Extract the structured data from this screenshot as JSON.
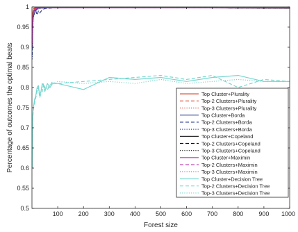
{
  "chart_data": {
    "type": "line",
    "title": "",
    "xlabel": "Forest size",
    "ylabel": "Percentage of outcomes the optimal beats",
    "xlim": [
      0,
      1000
    ],
    "ylim": [
      0.5,
      1
    ],
    "xticks": [
      "100",
      "200",
      "300",
      "400",
      "500",
      "600",
      "700",
      "800",
      "900",
      "1000"
    ],
    "yticks": [
      "0.5",
      "0.55",
      "0.6",
      "0.65",
      "0.7",
      "0.75",
      "0.8",
      "0.85",
      "0.9",
      "0.95",
      "1"
    ],
    "grid": false,
    "legend_position": "lower-right",
    "series": [
      {
        "name": "Top Cluster+Plurality",
        "color": "#d9452c",
        "dash": "solid",
        "x": [
          1,
          3,
          5,
          10,
          15,
          20,
          30,
          40,
          50,
          70,
          100,
          300,
          500,
          700,
          1000
        ],
        "y": [
          0.95,
          0.985,
          0.995,
          0.998,
          0.999,
          0.999,
          0.999,
          0.999,
          0.999,
          0.999,
          0.999,
          0.999,
          0.999,
          0.999,
          0.999
        ]
      },
      {
        "name": "Top-2 Clusters+Plurality",
        "color": "#d9452c",
        "dash": "dashed",
        "x": [
          1,
          3,
          5,
          10,
          15,
          20,
          30,
          50,
          100,
          300,
          500,
          1000
        ],
        "y": [
          0.94,
          0.98,
          0.99,
          0.997,
          0.998,
          0.999,
          0.999,
          0.999,
          0.999,
          0.999,
          0.999,
          0.999
        ]
      },
      {
        "name": "Top-3 Clusters+Plurality",
        "color": "#d9452c",
        "dash": "dotted",
        "x": [
          1,
          3,
          5,
          10,
          15,
          20,
          30,
          50,
          100,
          300,
          500,
          1000
        ],
        "y": [
          0.93,
          0.975,
          0.99,
          0.996,
          0.998,
          0.999,
          0.999,
          0.999,
          0.999,
          0.999,
          0.999,
          0.999
        ]
      },
      {
        "name": "Top Cluster+Borda",
        "color": "#2b3f8f",
        "dash": "solid",
        "x": [
          1,
          3,
          5,
          10,
          15,
          20,
          30,
          40,
          50,
          70,
          100,
          300,
          500,
          700,
          1000
        ],
        "y": [
          0.9,
          0.96,
          0.98,
          0.99,
          0.993,
          0.996,
          0.997,
          0.998,
          0.998,
          0.998,
          0.998,
          0.998,
          0.998,
          0.998,
          0.998
        ]
      },
      {
        "name": "Top-2 Clusters+Borda",
        "color": "#2b3f8f",
        "dash": "dashed",
        "x": [
          1,
          3,
          5,
          10,
          15,
          20,
          25,
          30,
          40,
          50,
          70,
          100,
          300,
          500,
          700,
          1000
        ],
        "y": [
          0.88,
          0.95,
          0.975,
          0.985,
          0.99,
          0.98,
          0.99,
          0.985,
          0.993,
          0.996,
          0.997,
          0.998,
          0.998,
          0.998,
          0.998,
          0.998
        ]
      },
      {
        "name": "Top-3 Clusters+Borda",
        "color": "#2b3f8f",
        "dash": "dotted",
        "x": [
          1,
          3,
          5,
          10,
          15,
          20,
          30,
          50,
          100,
          300,
          500,
          1000
        ],
        "y": [
          0.87,
          0.95,
          0.97,
          0.985,
          0.99,
          0.993,
          0.996,
          0.997,
          0.998,
          0.998,
          0.998,
          0.998
        ]
      },
      {
        "name": "Top Cluster+Copeland",
        "color": "#111111",
        "dash": "solid",
        "x": [
          1,
          3,
          5,
          10,
          15,
          20,
          30,
          50,
          100,
          300,
          500,
          1000
        ],
        "y": [
          0.92,
          0.97,
          0.985,
          0.993,
          0.996,
          0.997,
          0.998,
          0.998,
          0.998,
          0.998,
          0.998,
          0.997
        ]
      },
      {
        "name": "Top-2 Clusters+Copeland",
        "color": "#111111",
        "dash": "dashed",
        "x": [
          1,
          3,
          5,
          10,
          15,
          20,
          30,
          50,
          100,
          300,
          500,
          1000
        ],
        "y": [
          0.91,
          0.965,
          0.98,
          0.99,
          0.994,
          0.996,
          0.997,
          0.998,
          0.998,
          0.998,
          0.998,
          0.997
        ]
      },
      {
        "name": "Top-3 Clusters+Copeland",
        "color": "#111111",
        "dash": "dotted",
        "x": [
          1,
          3,
          5,
          10,
          15,
          20,
          30,
          50,
          100,
          300,
          500,
          1000
        ],
        "y": [
          0.9,
          0.96,
          0.98,
          0.99,
          0.994,
          0.996,
          0.997,
          0.998,
          0.998,
          0.998,
          0.998,
          0.997
        ]
      },
      {
        "name": "Top Cluster+Maximin",
        "color": "#b93fb0",
        "dash": "solid",
        "x": [
          1,
          3,
          5,
          10,
          15,
          20,
          30,
          40,
          50,
          70,
          100,
          300,
          500,
          700,
          1000
        ],
        "y": [
          0.92,
          0.97,
          0.985,
          0.994,
          0.996,
          0.997,
          0.998,
          0.998,
          0.998,
          0.998,
          0.998,
          0.998,
          0.998,
          0.998,
          0.998
        ]
      },
      {
        "name": "Top-2 Clusters+Maximin",
        "color": "#b93fb0",
        "dash": "dashed",
        "x": [
          1,
          3,
          5,
          10,
          15,
          20,
          30,
          50,
          100,
          300,
          500,
          1000
        ],
        "y": [
          0.91,
          0.965,
          0.98,
          0.99,
          0.995,
          0.997,
          0.998,
          0.998,
          0.998,
          0.998,
          0.998,
          0.998
        ]
      },
      {
        "name": "Top-3 Clusters+Maximin",
        "color": "#b93fb0",
        "dash": "dotted",
        "x": [
          1,
          3,
          5,
          10,
          15,
          20,
          30,
          50,
          100,
          300,
          500,
          1000
        ],
        "y": [
          0.9,
          0.96,
          0.98,
          0.99,
          0.994,
          0.996,
          0.997,
          0.998,
          0.998,
          0.998,
          0.998,
          0.998
        ]
      },
      {
        "name": "Top Cluster+Decision Tree",
        "color": "#76d7d0",
        "dash": "solid",
        "x": [
          1,
          2,
          3,
          5,
          8,
          10,
          15,
          20,
          25,
          30,
          35,
          40,
          45,
          50,
          60,
          70,
          80,
          90,
          100,
          200,
          300,
          400,
          500,
          600,
          700,
          800,
          900,
          1000
        ],
        "y": [
          0.6,
          0.68,
          0.73,
          0.75,
          0.76,
          0.77,
          0.78,
          0.8,
          0.805,
          0.78,
          0.79,
          0.81,
          0.805,
          0.79,
          0.81,
          0.8,
          0.81,
          0.81,
          0.81,
          0.795,
          0.825,
          0.82,
          0.825,
          0.815,
          0.825,
          0.83,
          0.815,
          0.815
        ]
      },
      {
        "name": "Top-2 Clusters+Decision Tree",
        "color": "#76d7d0",
        "dash": "dashed",
        "x": [
          1,
          2,
          3,
          5,
          8,
          10,
          15,
          20,
          25,
          30,
          35,
          40,
          45,
          50,
          60,
          70,
          80,
          90,
          100,
          200,
          300,
          400,
          500,
          600,
          700,
          800,
          900,
          1000
        ],
        "y": [
          0.62,
          0.69,
          0.72,
          0.74,
          0.755,
          0.76,
          0.775,
          0.79,
          0.8,
          0.775,
          0.785,
          0.79,
          0.81,
          0.8,
          0.795,
          0.805,
          0.815,
          0.81,
          0.81,
          0.815,
          0.82,
          0.825,
          0.83,
          0.82,
          0.83,
          0.8,
          0.82,
          0.815
        ]
      },
      {
        "name": "Top-3 Clusters+Decision Tree",
        "color": "#76d7d0",
        "dash": "dotted",
        "x": [
          1,
          2,
          3,
          5,
          8,
          10,
          15,
          20,
          25,
          30,
          35,
          40,
          45,
          50,
          60,
          70,
          80,
          90,
          100,
          200,
          300,
          400,
          500,
          600,
          700,
          800,
          900,
          1000
        ],
        "y": [
          0.61,
          0.685,
          0.725,
          0.745,
          0.76,
          0.765,
          0.78,
          0.795,
          0.8,
          0.78,
          0.79,
          0.8,
          0.805,
          0.795,
          0.8,
          0.805,
          0.81,
          0.81,
          0.815,
          0.81,
          0.815,
          0.81,
          0.82,
          0.81,
          0.815,
          0.82,
          0.815,
          0.815
        ]
      }
    ]
  }
}
